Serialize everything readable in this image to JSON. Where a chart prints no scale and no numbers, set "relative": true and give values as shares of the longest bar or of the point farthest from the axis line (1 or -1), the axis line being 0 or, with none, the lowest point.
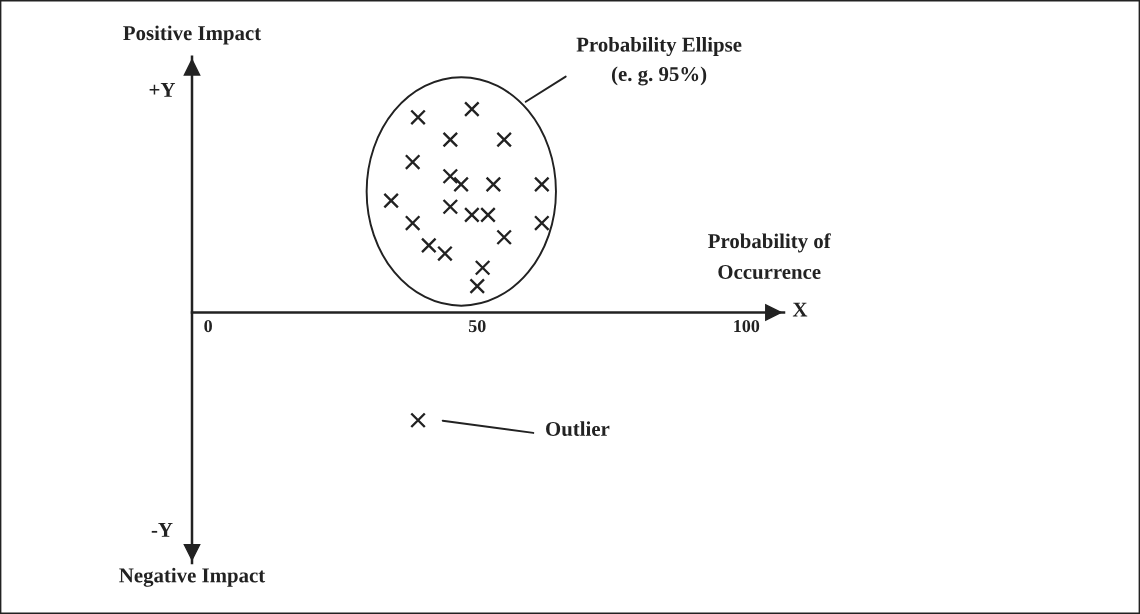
{
  "chart_data": {
    "type": "scatter",
    "xlabel": "Probability of\nOccurrence",
    "annotations": [
      "Positive Impact",
      "+Y",
      "-Y",
      "Negative Impact",
      "X",
      "Probability Ellipse\n(e. g. 95%)",
      "Outlier"
    ],
    "x": [
      39,
      49,
      45,
      55,
      38,
      45,
      47,
      53,
      62,
      34,
      45,
      49,
      52,
      38,
      62,
      55,
      41,
      44,
      51,
      50,
      39
    ],
    "values": [
      0.96,
      1.0,
      0.85,
      0.85,
      0.74,
      0.67,
      0.63,
      0.63,
      0.63,
      0.55,
      0.52,
      0.48,
      0.48,
      0.44,
      0.44,
      0.37,
      0.33,
      0.29,
      0.22,
      0.13,
      -0.53
    ],
    "color": "#222222",
    "marker": "cross",
    "relative": true,
    "xlim": [
      -3,
      107
    ],
    "xticks": [
      0,
      50,
      100
    ]
  }
}
